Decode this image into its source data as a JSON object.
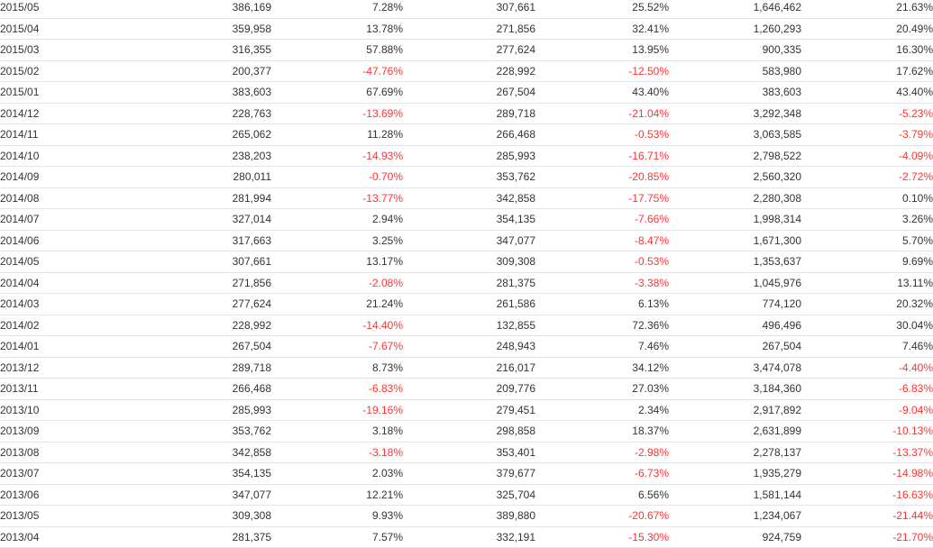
{
  "colors": {
    "text": "#333333",
    "negative": "#ff3333",
    "row_border": "#e6e6e6",
    "background": "#ffffff"
  },
  "table": {
    "rows": [
      [
        "2015/05",
        "386,169",
        "7.28%",
        "307,661",
        "25.52%",
        "1,646,462",
        "21.63%"
      ],
      [
        "2015/04",
        "359,958",
        "13.78%",
        "271,856",
        "32.41%",
        "1,260,293",
        "20.49%"
      ],
      [
        "2015/03",
        "316,355",
        "57.88%",
        "277,624",
        "13.95%",
        "900,335",
        "16.30%"
      ],
      [
        "2015/02",
        "200,377",
        "-47.76%",
        "228,992",
        "-12.50%",
        "583,980",
        "17.62%"
      ],
      [
        "2015/01",
        "383,603",
        "67.69%",
        "267,504",
        "43.40%",
        "383,603",
        "43.40%"
      ],
      [
        "2014/12",
        "228,763",
        "-13.69%",
        "289,718",
        "-21.04%",
        "3,292,348",
        "-5.23%"
      ],
      [
        "2014/11",
        "265,062",
        "11.28%",
        "266,468",
        "-0.53%",
        "3,063,585",
        "-3.79%"
      ],
      [
        "2014/10",
        "238,203",
        "-14.93%",
        "285,993",
        "-16.71%",
        "2,798,522",
        "-4.09%"
      ],
      [
        "2014/09",
        "280,011",
        "-0.70%",
        "353,762",
        "-20.85%",
        "2,560,320",
        "-2.72%"
      ],
      [
        "2014/08",
        "281,994",
        "-13.77%",
        "342,858",
        "-17.75%",
        "2,280,308",
        "0.10%"
      ],
      [
        "2014/07",
        "327,014",
        "2.94%",
        "354,135",
        "-7.66%",
        "1,998,314",
        "3.26%"
      ],
      [
        "2014/06",
        "317,663",
        "3.25%",
        "347,077",
        "-8.47%",
        "1,671,300",
        "5.70%"
      ],
      [
        "2014/05",
        "307,661",
        "13.17%",
        "309,308",
        "-0.53%",
        "1,353,637",
        "9.69%"
      ],
      [
        "2014/04",
        "271,856",
        "-2.08%",
        "281,375",
        "-3.38%",
        "1,045,976",
        "13.11%"
      ],
      [
        "2014/03",
        "277,624",
        "21.24%",
        "261,586",
        "6.13%",
        "774,120",
        "20.32%"
      ],
      [
        "2014/02",
        "228,992",
        "-14.40%",
        "132,855",
        "72.36%",
        "496,496",
        "30.04%"
      ],
      [
        "2014/01",
        "267,504",
        "-7.67%",
        "248,943",
        "7.46%",
        "267,504",
        "7.46%"
      ],
      [
        "2013/12",
        "289,718",
        "8.73%",
        "216,017",
        "34.12%",
        "3,474,078",
        "-4.40%"
      ],
      [
        "2013/11",
        "266,468",
        "-6.83%",
        "209,776",
        "27.03%",
        "3,184,360",
        "-6.83%"
      ],
      [
        "2013/10",
        "285,993",
        "-19.16%",
        "279,451",
        "2.34%",
        "2,917,892",
        "-9.04%"
      ],
      [
        "2013/09",
        "353,762",
        "3.18%",
        "298,858",
        "18.37%",
        "2,631,899",
        "-10.13%"
      ],
      [
        "2013/08",
        "342,858",
        "-3.18%",
        "353,401",
        "-2.98%",
        "2,278,137",
        "-13.37%"
      ],
      [
        "2013/07",
        "354,135",
        "2.03%",
        "379,677",
        "-6.73%",
        "1,935,279",
        "-14.98%"
      ],
      [
        "2013/06",
        "347,077",
        "12.21%",
        "325,704",
        "6.56%",
        "1,581,144",
        "-16.63%"
      ],
      [
        "2013/05",
        "309,308",
        "9.93%",
        "389,880",
        "-20.67%",
        "1,234,067",
        "-21.44%"
      ],
      [
        "2013/04",
        "281,375",
        "7.57%",
        "332,191",
        "-15.30%",
        "924,759",
        "-21.70%"
      ]
    ]
  }
}
